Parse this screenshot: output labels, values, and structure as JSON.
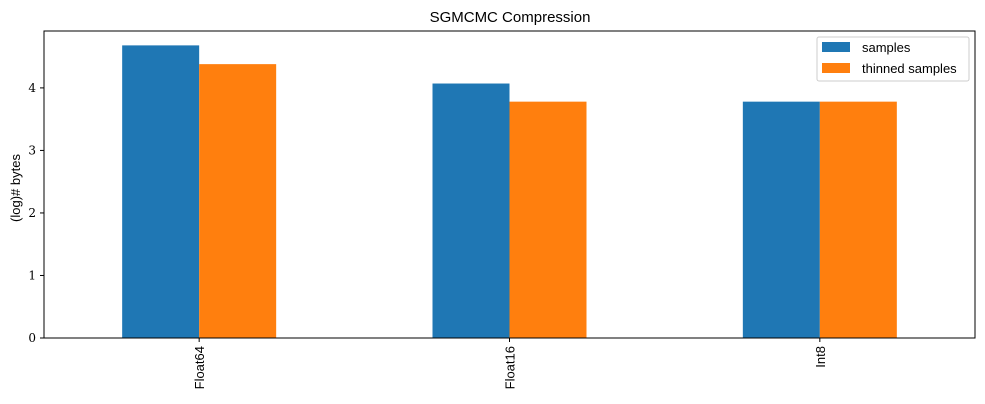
{
  "chart_data": {
    "type": "bar",
    "title": "SGMCMC Compression",
    "xlabel": "",
    "ylabel": "(log)# bytes",
    "categories": [
      "Float64",
      "Float16",
      "Int8"
    ],
    "series": [
      {
        "name": "samples",
        "values": [
          4.68,
          4.07,
          3.78
        ],
        "color": "#1f77b4"
      },
      {
        "name": "thinned samples",
        "values": [
          4.38,
          3.78,
          3.78
        ],
        "color": "#ff7f0e"
      }
    ],
    "ylim": [
      0,
      4.91
    ],
    "yticks": [
      "0",
      "1",
      "2",
      "3",
      "4"
    ],
    "legend_position": "top-right",
    "grid": false
  }
}
